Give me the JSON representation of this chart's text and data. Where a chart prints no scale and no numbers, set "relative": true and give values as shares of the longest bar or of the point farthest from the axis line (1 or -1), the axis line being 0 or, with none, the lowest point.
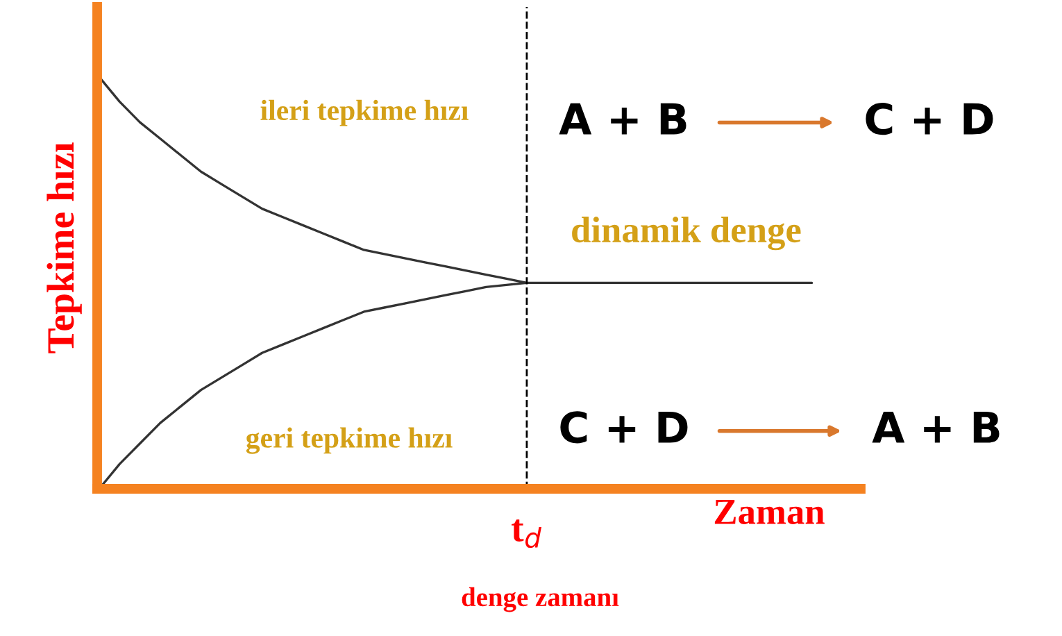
{
  "chart_data": {
    "type": "line",
    "relative": true,
    "categories": [
      null,
      null,
      null,
      null,
      null,
      null,
      null,
      null,
      null,
      null,
      null,
      null,
      null,
      null,
      null,
      null,
      null,
      null,
      null,
      null,
      null,
      null,
      null,
      null,
      null,
      null,
      null,
      null,
      null,
      null,
      null,
      null,
      null,
      null,
      null,
      null
    ],
    "ylabel": "Tepkime hızı",
    "xlabel": "Zaman",
    "series": [
      {
        "color": "#333333",
        "values": [
          1.0,
          0.94,
          0.89,
          0.85,
          0.81,
          0.77,
          0.74,
          0.71,
          0.68,
          0.66,
          0.64,
          0.62,
          0.6,
          0.58,
          0.57,
          0.56,
          0.55,
          0.54,
          0.53,
          0.52,
          0.51,
          0.5,
          0.5,
          0.5,
          0.5,
          0.5,
          0.5,
          0.5,
          0.5,
          0.5,
          0.5,
          0.5,
          0.5,
          0.5,
          0.5,
          0.5
        ]
      },
      {
        "color": "#333333",
        "values": [
          0.0,
          0.06,
          0.11,
          0.16,
          0.2,
          0.24,
          0.27,
          0.3,
          0.33,
          0.35,
          0.37,
          0.39,
          0.41,
          0.43,
          0.44,
          0.45,
          0.46,
          0.47,
          0.48,
          0.49,
          0.495,
          0.5,
          null,
          null,
          null,
          null,
          null,
          null,
          null,
          null,
          null,
          null,
          null,
          null,
          null,
          null
        ]
      }
    ],
    "annotations": [
      "ileri tepkime hızı",
      "geri tepkime hızı",
      "dinamik denge",
      "A + B",
      "C + D",
      "C + D",
      "A + B",
      "denge zamanı",
      "t$_{d}$"
    ],
    "legend": false,
    "marker": "none",
    "line_style": "solid",
    "tick_labels": false
  }
}
